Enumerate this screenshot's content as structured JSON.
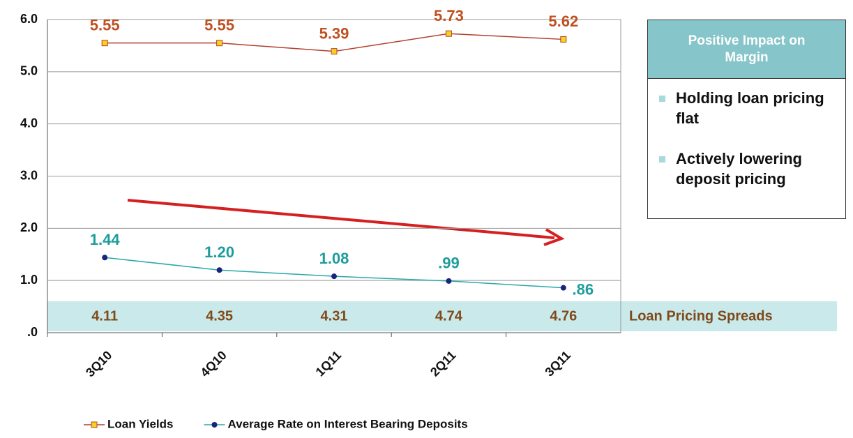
{
  "chart_data": {
    "type": "line",
    "categories": [
      "3Q10",
      "4Q10",
      "1Q11",
      "2Q11",
      "3Q11"
    ],
    "series": [
      {
        "name": "Loan Yields",
        "color": "#b2402f",
        "label_color": "#c0501f",
        "marker": "#f5d31c",
        "values": [
          5.55,
          5.55,
          5.39,
          5.73,
          5.62
        ]
      },
      {
        "name": "Average Rate on Interest Bearing Deposits",
        "color": "#2aa8a8",
        "label_color": "#1d9c9c",
        "marker": "#1a237e",
        "values": [
          1.44,
          1.2,
          1.08,
          0.99,
          0.86
        ],
        "value_labels": [
          "1.44",
          "1.20",
          "1.08",
          ".99",
          ".86"
        ]
      }
    ],
    "spread_row": {
      "label": "Loan Pricing Spreads",
      "values": [
        4.11,
        4.35,
        4.31,
        4.74,
        4.76
      ]
    },
    "ylim": [
      0,
      6
    ],
    "yticks": [
      {
        "value": 0,
        "label": ".0"
      },
      {
        "value": 1,
        "label": "1.0"
      },
      {
        "value": 2,
        "label": "2.0"
      },
      {
        "value": 3,
        "label": "3.0"
      },
      {
        "value": 4,
        "label": "4.0"
      },
      {
        "value": 5,
        "label": "5.0"
      },
      {
        "value": 6,
        "label": "6.0"
      }
    ],
    "grid": true
  },
  "side_box": {
    "title": "Positive Impact on Margin",
    "bullets": [
      "Holding loan pricing flat",
      "Actively lowering deposit pricing"
    ]
  }
}
